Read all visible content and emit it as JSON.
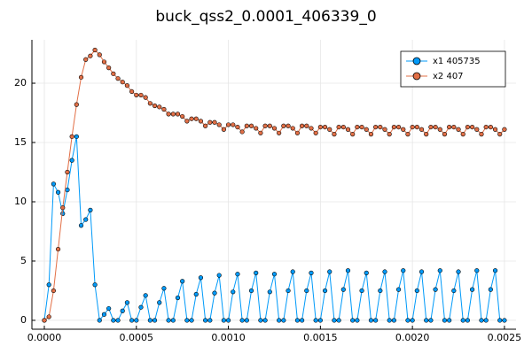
{
  "chart_data": {
    "type": "line",
    "title": "buck_qss2_0.0001_406339_0",
    "x": [
      0,
      2.5e-05,
      5e-05,
      7.5e-05,
      0.0001,
      0.000125,
      0.00015,
      0.000175,
      0.0002,
      0.000225,
      0.00025,
      0.000275,
      0.0003,
      0.000325,
      0.00035,
      0.000375,
      0.0004,
      0.000425,
      0.00045,
      0.000475,
      0.0005,
      0.000525,
      0.00055,
      0.000575,
      0.0006,
      0.000625,
      0.00065,
      0.000675,
      0.0007,
      0.000725,
      0.00075,
      0.000775,
      0.0008,
      0.000825,
      0.00085,
      0.000875,
      0.0009,
      0.000925,
      0.00095,
      0.000975,
      0.001,
      0.001025,
      0.00105,
      0.001075,
      0.0011,
      0.001125,
      0.00115,
      0.001175,
      0.0012,
      0.001225,
      0.00125,
      0.001275,
      0.0013,
      0.001325,
      0.00135,
      0.001375,
      0.0014,
      0.001425,
      0.00145,
      0.001475,
      0.0015,
      0.001525,
      0.00155,
      0.001575,
      0.0016,
      0.001625,
      0.00165,
      0.001675,
      0.0017,
      0.001725,
      0.00175,
      0.001775,
      0.0018,
      0.001825,
      0.00185,
      0.001875,
      0.0019,
      0.001925,
      0.00195,
      0.001975,
      0.002,
      0.002025,
      0.00205,
      0.002075,
      0.0021,
      0.002125,
      0.00215,
      0.002175,
      0.0022,
      0.002225,
      0.00225,
      0.002275,
      0.0023,
      0.002325,
      0.00235,
      0.002375,
      0.0024,
      0.002425,
      0.00245,
      0.002475,
      0.0025
    ],
    "series": [
      {
        "name": "x1 405735",
        "color": "#009af9",
        "values": [
          0,
          3,
          11.5,
          10.8,
          9,
          11,
          13.5,
          15.5,
          8,
          8.5,
          9.3,
          3,
          0,
          0.5,
          1.0,
          0,
          0,
          0.8,
          1.5,
          0,
          0,
          1.1,
          2.1,
          0,
          0,
          1.5,
          2.7,
          0,
          0,
          1.9,
          3.3,
          0,
          0,
          2.2,
          3.6,
          0,
          0,
          2.3,
          3.8,
          0,
          0,
          2.4,
          3.9,
          0,
          0,
          2.5,
          4.0,
          0,
          0,
          2.4,
          3.9,
          0,
          0,
          2.5,
          4.1,
          0,
          0,
          2.5,
          4.0,
          0,
          0,
          2.5,
          4.1,
          0,
          0,
          2.6,
          4.2,
          0,
          0,
          2.5,
          4.0,
          0,
          0,
          2.5,
          4.1,
          0,
          0,
          2.6,
          4.2,
          0,
          0,
          2.5,
          4.1,
          0,
          0,
          2.6,
          4.2,
          0,
          0,
          2.5,
          4.1,
          0,
          0,
          2.6,
          4.2,
          0,
          0,
          2.6,
          4.2,
          0,
          0
        ]
      },
      {
        "name": "x2 407",
        "color": "#e26f46",
        "values": [
          0,
          0.3,
          2.5,
          6,
          9.5,
          12.5,
          15.5,
          18.2,
          20.5,
          22,
          22.3,
          22.8,
          22.4,
          21.8,
          21.3,
          20.8,
          20.4,
          20.1,
          19.8,
          19.3,
          19.0,
          19.0,
          18.8,
          18.3,
          18.1,
          18.0,
          17.8,
          17.4,
          17.4,
          17.4,
          17.2,
          16.8,
          17.0,
          17.0,
          16.8,
          16.4,
          16.7,
          16.7,
          16.5,
          16.1,
          16.5,
          16.5,
          16.3,
          15.9,
          16.4,
          16.4,
          16.2,
          15.8,
          16.4,
          16.4,
          16.2,
          15.8,
          16.4,
          16.4,
          16.2,
          15.8,
          16.4,
          16.4,
          16.2,
          15.8,
          16.3,
          16.3,
          16.1,
          15.7,
          16.3,
          16.3,
          16.1,
          15.7,
          16.3,
          16.3,
          16.1,
          15.7,
          16.3,
          16.3,
          16.1,
          15.7,
          16.3,
          16.3,
          16.1,
          15.7,
          16.3,
          16.3,
          16.1,
          15.7,
          16.3,
          16.3,
          16.1,
          15.7,
          16.3,
          16.3,
          16.1,
          15.7,
          16.3,
          16.3,
          16.1,
          15.7,
          16.3,
          16.3,
          16.1,
          15.7,
          16.1
        ]
      }
    ],
    "xlim": [
      -6.75e-05,
      0.002563
    ],
    "ylim": [
      -0.75,
      23.66
    ],
    "xticks": [
      {
        "value": 0,
        "label": "0.0000"
      },
      {
        "value": 0.0005,
        "label": "0.0005"
      },
      {
        "value": 0.001,
        "label": "0.0010"
      },
      {
        "value": 0.0015,
        "label": "0.0015"
      },
      {
        "value": 0.002,
        "label": "0.0020"
      },
      {
        "value": 0.0025,
        "label": "0.0025"
      }
    ],
    "yticks": [
      0,
      5,
      10,
      15,
      20
    ],
    "grid": true,
    "legend": "top-right",
    "markers": true
  }
}
